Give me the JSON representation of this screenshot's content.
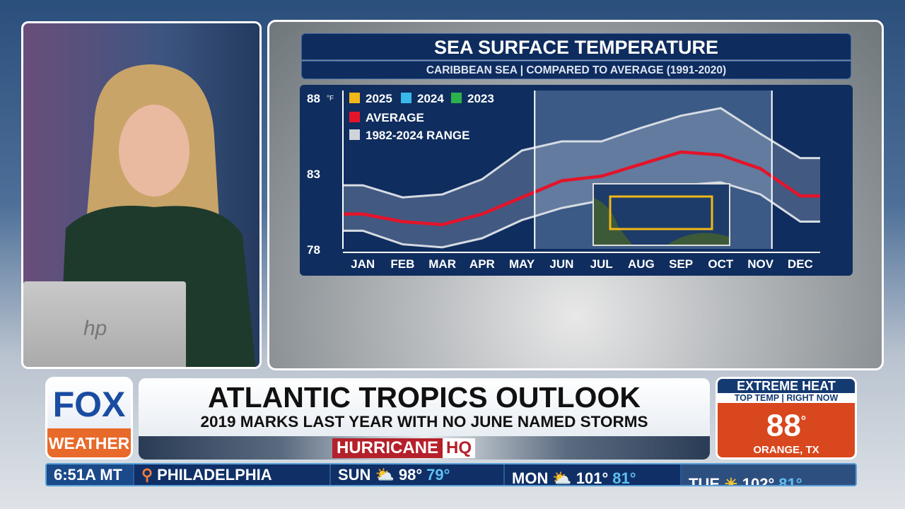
{
  "chart_panel": {
    "title": "SEA SURFACE TEMPERATURE",
    "subtitle": "CARIBBEAN SEA | COMPARED TO AVERAGE (1991-2020)"
  },
  "chart_data": {
    "type": "line",
    "title": "SEA SURFACE TEMPERATURE",
    "subtitle": "CARIBBEAN SEA | COMPARED TO AVERAGE (1991-2020)",
    "unit": "°F",
    "categories": [
      "JAN",
      "FEB",
      "MAR",
      "APR",
      "MAY",
      "JUN",
      "JUL",
      "AUG",
      "SEP",
      "OCT",
      "NOV",
      "DEC"
    ],
    "yticks": [
      78,
      83,
      88
    ],
    "ylim": [
      78,
      88
    ],
    "legend": [
      {
        "name": "2025",
        "color": "#f2b718"
      },
      {
        "name": "2024",
        "color": "#39b9ea"
      },
      {
        "name": "2023",
        "color": "#2bb24c"
      },
      {
        "name": "AVERAGE",
        "color": "#e3142a"
      },
      {
        "name": "1982-2024 RANGE",
        "color": "#d0d4da"
      }
    ],
    "legend_position": "top-left",
    "highlighted_period": [
      "JUN",
      "NOV"
    ],
    "series": [
      {
        "name": "AVERAGE",
        "values": [
          80.3,
          79.8,
          79.6,
          80.3,
          81.4,
          82.5,
          82.8,
          83.6,
          84.4,
          84.2,
          83.3,
          81.5
        ]
      },
      {
        "name": "1982-2024 RANGE upper",
        "values": [
          82.2,
          81.4,
          81.6,
          82.6,
          84.5,
          85.1,
          85.1,
          86.0,
          86.8,
          87.3,
          85.6,
          84.0
        ]
      },
      {
        "name": "1982-2024 RANGE lower",
        "values": [
          79.2,
          78.3,
          78.1,
          78.7,
          79.9,
          80.7,
          81.2,
          81.8,
          82.2,
          82.4,
          81.6,
          79.8
        ]
      }
    ]
  },
  "lower_third": {
    "headline": "ATLANTIC TROPICS OUTLOOK",
    "subhead": "2019 MARKS LAST YEAR WITH NO JUNE NAMED STORMS",
    "brand_part1": "HURRICANE",
    "brand_part2": "HQ"
  },
  "logo": {
    "top": "FOX",
    "bottom": "WEATHER"
  },
  "heat_box": {
    "title": "EXTREME HEAT",
    "subtitle": "TOP TEMP | RIGHT NOW",
    "temp": "88",
    "degree": "°",
    "location": "ORANGE, TX"
  },
  "ticker": {
    "time": "6:51A MT",
    "city": "PHILADELPHIA",
    "days": [
      {
        "day": "SUN",
        "high": "98°",
        "low": "79°",
        "icon": "partly-sunny-icon"
      },
      {
        "day": "MON",
        "high": "101°",
        "low": "81°",
        "icon": "partly-sunny-icon"
      },
      {
        "day": "TUE",
        "high": "102°",
        "low": "81°",
        "icon": "sunny-icon"
      }
    ]
  },
  "laptop": {
    "brand": "hp"
  }
}
